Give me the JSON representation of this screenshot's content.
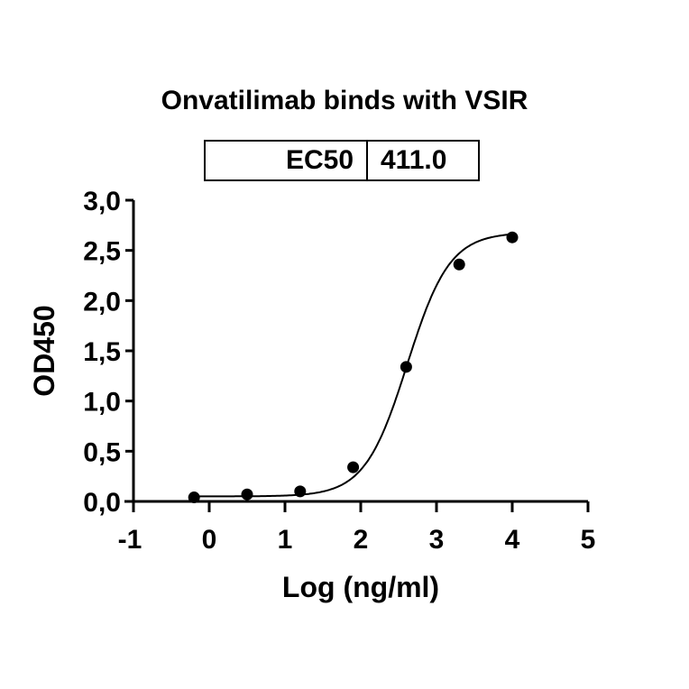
{
  "chart_data": {
    "type": "scatter",
    "title": "Onvatilimab binds with VSIR",
    "xlabel": "Log (ng/ml)",
    "ylabel": "OD450",
    "xlim": [
      -1,
      5
    ],
    "ylim": [
      0,
      3.0
    ],
    "x_ticks": [
      "-1",
      "0",
      "1",
      "2",
      "3",
      "4",
      "5"
    ],
    "y_ticks": [
      "0,0",
      "0,5",
      "1,0",
      "1,5",
      "2,0",
      "2,5",
      "3,0"
    ],
    "grid": false,
    "legend": null,
    "series": [
      {
        "name": "Onvatilimab",
        "x": [
          -0.2,
          0.5,
          1.2,
          1.9,
          2.6,
          3.3,
          4.0
        ],
        "values": [
          0.04,
          0.07,
          0.1,
          0.34,
          1.34,
          2.36,
          2.63
        ],
        "fit": "four-parameter logistic",
        "fit_params": {
          "bottom": 0.05,
          "top": 2.68,
          "logEC50": 2.614,
          "hill": 1.55
        }
      }
    ],
    "annotations": [
      {
        "type": "table",
        "label": "EC50",
        "value": "411.0"
      }
    ]
  },
  "ec50": {
    "label": "EC50",
    "value": "411.0"
  }
}
